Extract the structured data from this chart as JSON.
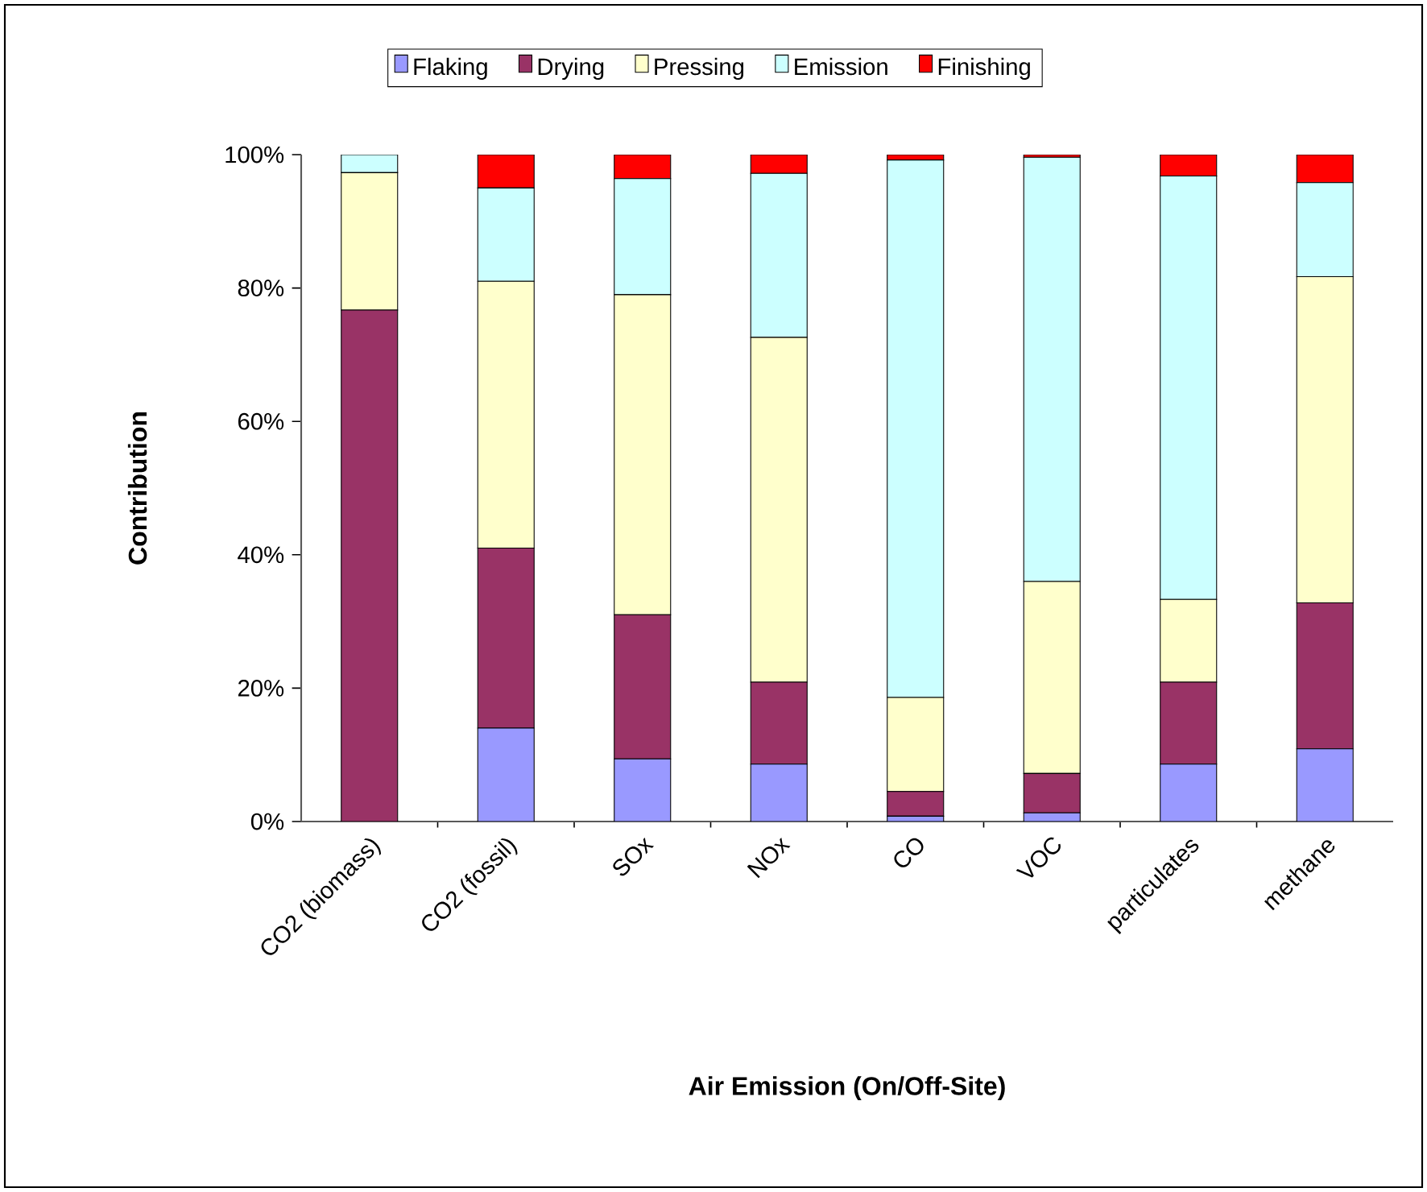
{
  "chart_data": {
    "type": "bar",
    "stacked": true,
    "xlabel": "Air Emission (On/Off-Site)",
    "ylabel": "Contribution",
    "categories": [
      "CO2 (biomass)",
      "CO2 (fossil)",
      "SOx",
      "NOx",
      "CO",
      "VOC",
      "particulates",
      "methane"
    ],
    "series": [
      {
        "name": "Flaking",
        "color": "#9999ff",
        "values": [
          0,
          14,
          9.4,
          8.6,
          0.8,
          1.3,
          8.6,
          10.9
        ]
      },
      {
        "name": "Drying",
        "color": "#993366",
        "values": [
          76.7,
          27,
          21.6,
          12.3,
          3.7,
          5.9,
          12.3,
          21.9
        ]
      },
      {
        "name": "Pressing",
        "color": "#ffffcc",
        "values": [
          20.6,
          40,
          48,
          51.7,
          14.1,
          28.8,
          12.4,
          48.9
        ]
      },
      {
        "name": "Emission",
        "color": "#ccffff",
        "values": [
          2.7,
          14,
          17.4,
          24.6,
          80.6,
          63.6,
          63.5,
          14.1
        ]
      },
      {
        "name": "Finishing",
        "color": "#ff0000",
        "values": [
          0,
          5,
          3.6,
          2.8,
          0.8,
          0.4,
          3.2,
          4.2
        ]
      }
    ],
    "ylim": [
      0,
      100
    ],
    "yticks": [
      {
        "value": 0,
        "label": "0%"
      },
      {
        "value": 20,
        "label": "20%"
      },
      {
        "value": 40,
        "label": "40%"
      },
      {
        "value": 60,
        "label": "60%"
      },
      {
        "value": 80,
        "label": "80%"
      },
      {
        "value": 100,
        "label": "100%"
      }
    ],
    "grid": false,
    "legend": "top"
  }
}
